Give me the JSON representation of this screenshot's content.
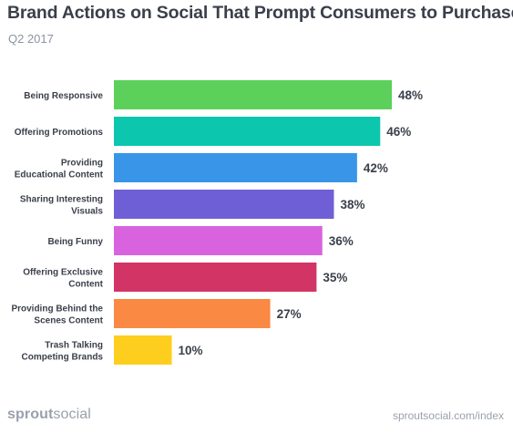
{
  "title": "Brand Actions on Social That Prompt Consumers to Purchase",
  "subtitle": "Q2 2017",
  "footer": {
    "logo_bold": "sprout",
    "logo_regular": "social",
    "url": "sproutsocial.com/index"
  },
  "colors": {
    "text": "#3a3f4a",
    "muted": "#9aa1ac"
  },
  "chart_data": {
    "type": "bar",
    "orientation": "horizontal",
    "categories": [
      [
        "Being Responsive"
      ],
      [
        "Offering Promotions"
      ],
      [
        "Providing",
        "Educational Content"
      ],
      [
        "Sharing Interesting",
        "Visuals"
      ],
      [
        "Being Funny"
      ],
      [
        "Offering Exclusive",
        "Content"
      ],
      [
        "Providing Behind the",
        "Scenes Content"
      ],
      [
        "Trash Talking",
        "Competing Brands"
      ]
    ],
    "values": [
      48,
      46,
      42,
      38,
      36,
      35,
      27,
      10
    ],
    "labels": [
      "48%",
      "46%",
      "42%",
      "38%",
      "36%",
      "35%",
      "27%",
      "10%"
    ],
    "colors": [
      "#5cd05a",
      "#0dc6ae",
      "#3895e8",
      "#6f5fd6",
      "#d963df",
      "#d23465",
      "#fa8944",
      "#fece1f"
    ],
    "xlim": [
      0,
      48
    ],
    "grid": false,
    "legend": "none"
  }
}
